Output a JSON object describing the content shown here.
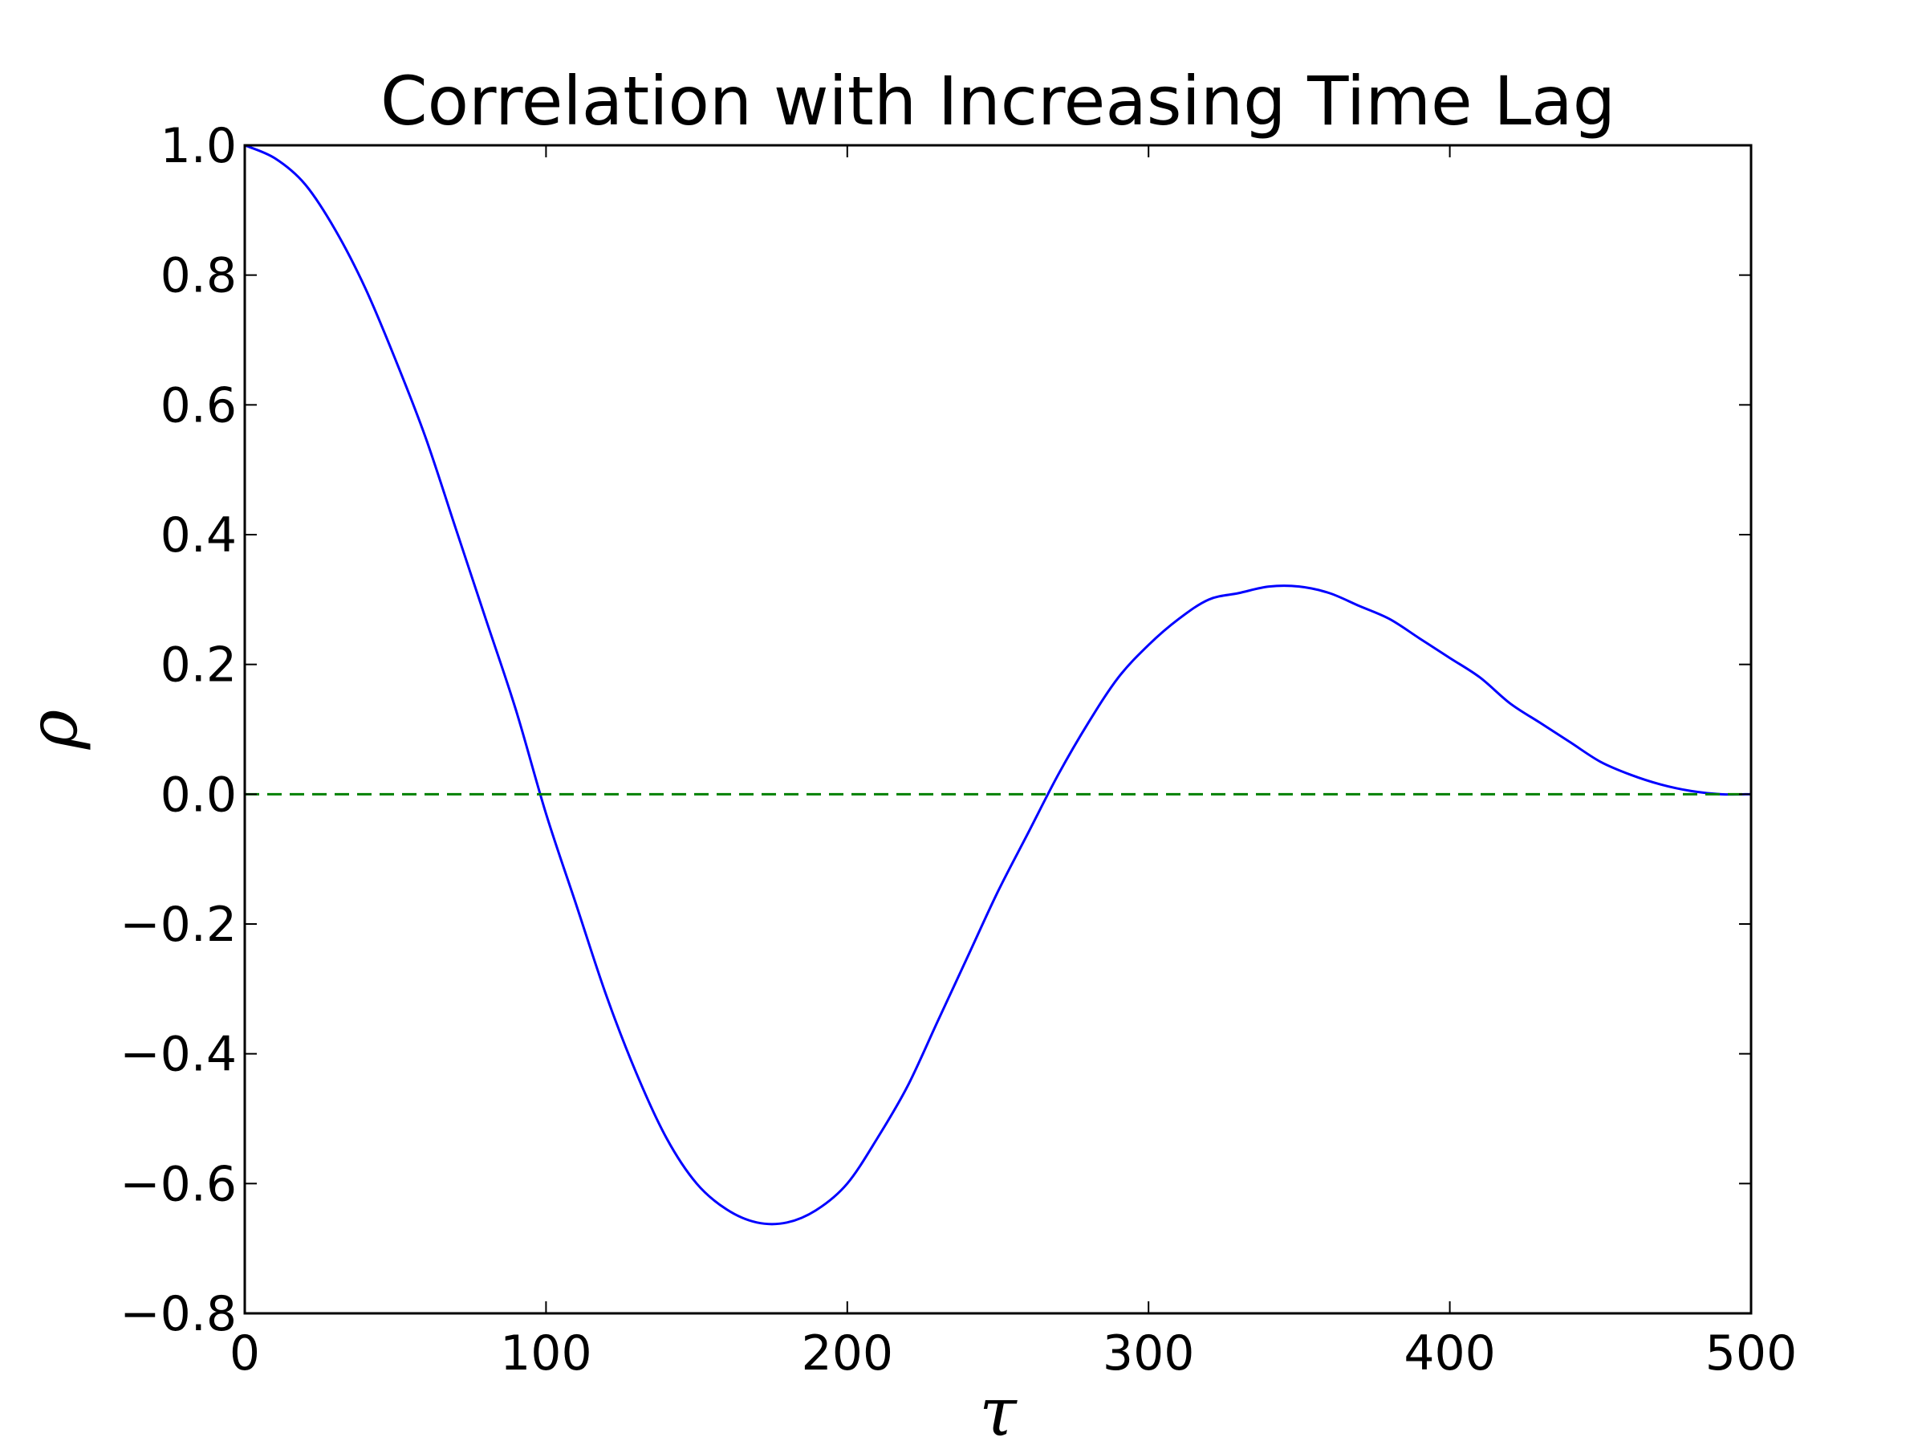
{
  "chart_data": {
    "type": "line",
    "title": "Correlation with Increasing Time Lag",
    "xlabel": "τ",
    "ylabel": "ρ",
    "xlim": [
      0,
      500
    ],
    "ylim": [
      -0.8,
      1.0
    ],
    "x_ticks": [
      0,
      100,
      200,
      300,
      400,
      500
    ],
    "x_tick_labels": [
      "0",
      "100",
      "200",
      "300",
      "400",
      "500"
    ],
    "y_ticks": [
      -0.8,
      -0.6,
      -0.4,
      -0.2,
      0.0,
      0.2,
      0.4,
      0.6,
      0.8,
      1.0
    ],
    "y_tick_labels": [
      "−0.8",
      "−0.6",
      "−0.4",
      "−0.2",
      "0.0",
      "0.2",
      "0.4",
      "0.6",
      "0.8",
      "1.0"
    ],
    "grid": false,
    "legend": "none",
    "series": [
      {
        "color": "#0000ff",
        "line_style": "solid",
        "x": [
          0,
          10,
          20,
          30,
          40,
          50,
          60,
          70,
          80,
          90,
          100,
          110,
          120,
          130,
          140,
          150,
          160,
          170,
          180,
          190,
          200,
          210,
          220,
          230,
          240,
          250,
          260,
          270,
          280,
          290,
          300,
          310,
          320,
          330,
          340,
          350,
          360,
          370,
          380,
          390,
          400,
          410,
          420,
          430,
          440,
          450,
          460,
          470,
          480,
          490,
          500
        ],
        "y": [
          1.0,
          0.98,
          0.94,
          0.87,
          0.78,
          0.67,
          0.55,
          0.41,
          0.27,
          0.13,
          -0.03,
          -0.17,
          -0.31,
          -0.43,
          -0.53,
          -0.6,
          -0.64,
          -0.66,
          -0.66,
          -0.64,
          -0.6,
          -0.53,
          -0.45,
          -0.35,
          -0.25,
          -0.15,
          -0.06,
          0.03,
          0.11,
          0.18,
          0.23,
          0.27,
          0.3,
          0.31,
          0.32,
          0.32,
          0.31,
          0.29,
          0.27,
          0.24,
          0.21,
          0.18,
          0.14,
          0.11,
          0.08,
          0.05,
          0.03,
          0.015,
          0.005,
          0.0,
          0.0
        ]
      },
      {
        "color": "#008000",
        "line_style": "dashed",
        "x": [
          0,
          500
        ],
        "y": [
          0.0,
          0.0
        ]
      }
    ]
  }
}
